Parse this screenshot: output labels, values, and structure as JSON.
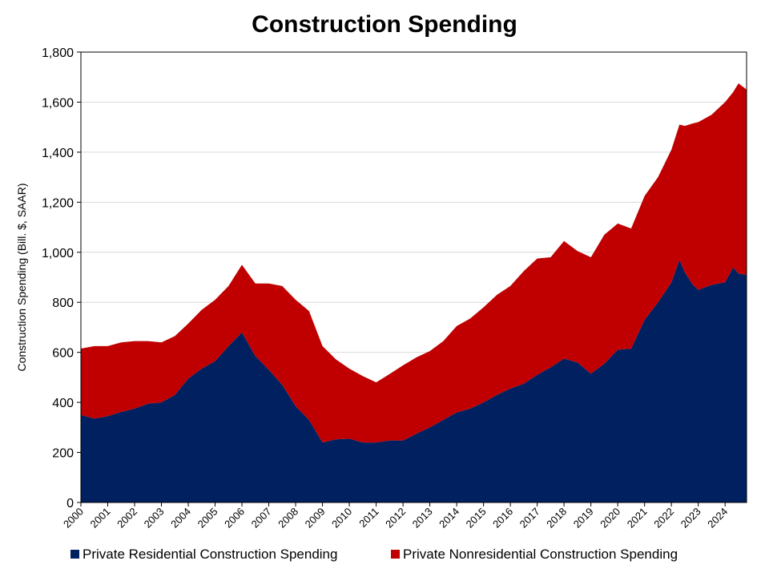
{
  "chart_data": {
    "type": "area",
    "stacked": true,
    "title": "Construction Spending",
    "ylabel": "Construction Spending (Bill. $, SAAR)",
    "xlabel": "",
    "ylim": [
      0,
      1800
    ],
    "yticks": [
      0,
      200,
      400,
      600,
      800,
      1000,
      1200,
      1400,
      1600,
      1800
    ],
    "ytick_labels": [
      "0",
      "200",
      "400",
      "600",
      "800",
      "1,000",
      "1,200",
      "1,400",
      "1,600",
      "1,800"
    ],
    "xlim": [
      2000,
      2024.8
    ],
    "xticks": [
      2000,
      2001,
      2002,
      2003,
      2004,
      2005,
      2006,
      2007,
      2008,
      2009,
      2010,
      2011,
      2012,
      2013,
      2014,
      2015,
      2016,
      2017,
      2018,
      2019,
      2020,
      2021,
      2022,
      2023,
      2024
    ],
    "xtick_labels": [
      "2000",
      "2001",
      "2002",
      "2003",
      "2004",
      "2005",
      "2006",
      "2007",
      "2008",
      "2009",
      "2010",
      "2011",
      "2012",
      "2013",
      "2014",
      "2015",
      "2016",
      "2017",
      "2018",
      "2019",
      "2020",
      "2021",
      "2022",
      "2023",
      "2024"
    ],
    "grid": true,
    "legend_position": "bottom",
    "x": [
      2000.0,
      2000.5,
      2001.0,
      2001.5,
      2002.0,
      2002.5,
      2003.0,
      2003.5,
      2004.0,
      2004.5,
      2005.0,
      2005.5,
      2006.0,
      2006.5,
      2007.0,
      2007.5,
      2008.0,
      2008.5,
      2009.0,
      2009.5,
      2010.0,
      2010.5,
      2011.0,
      2011.5,
      2012.0,
      2012.5,
      2013.0,
      2013.5,
      2014.0,
      2014.5,
      2015.0,
      2015.5,
      2016.0,
      2016.5,
      2017.0,
      2017.5,
      2018.0,
      2018.5,
      2019.0,
      2019.5,
      2020.0,
      2020.5,
      2021.0,
      2021.5,
      2022.0,
      2022.3,
      2022.5,
      2022.8,
      2023.0,
      2023.5,
      2024.0,
      2024.3,
      2024.5,
      2024.8
    ],
    "series": [
      {
        "name": "Private Residential Construction Spending",
        "color": "#002060",
        "values": [
          350,
          335,
          345,
          362,
          375,
          395,
          400,
          430,
          495,
          535,
          565,
          625,
          680,
          585,
          530,
          470,
          385,
          330,
          240,
          252,
          255,
          240,
          240,
          248,
          248,
          275,
          300,
          330,
          360,
          375,
          400,
          430,
          455,
          475,
          510,
          540,
          575,
          560,
          515,
          555,
          610,
          615,
          730,
          800,
          880,
          970,
          920,
          870,
          850,
          870,
          880,
          940,
          915,
          910
        ]
      },
      {
        "name": "Private Nonresidential Construction Spending",
        "color": "#c00000",
        "values": [
          265,
          290,
          280,
          278,
          270,
          250,
          240,
          235,
          220,
          235,
          245,
          240,
          270,
          290,
          345,
          395,
          425,
          435,
          385,
          320,
          280,
          265,
          240,
          265,
          300,
          305,
          305,
          315,
          345,
          360,
          380,
          400,
          410,
          450,
          465,
          440,
          470,
          445,
          465,
          515,
          505,
          480,
          495,
          500,
          530,
          540,
          585,
          645,
          670,
          680,
          720,
          700,
          760,
          740
        ]
      }
    ]
  }
}
